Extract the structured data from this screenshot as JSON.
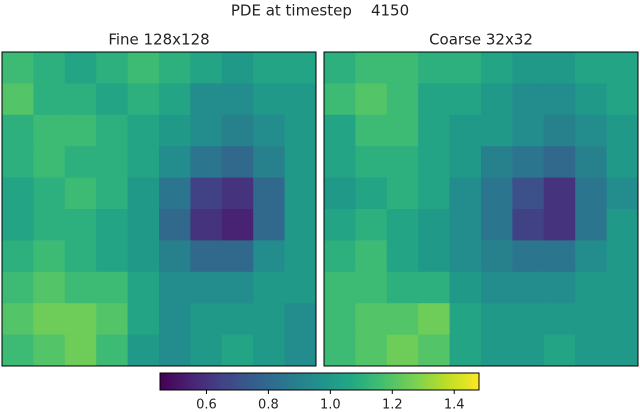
{
  "title": "PDE at timestep    4150",
  "chart_data": [
    {
      "type": "heatmap",
      "title": "Fine 128x128",
      "values": [
        [
          1.15,
          1.1,
          1.05,
          1.1,
          1.15,
          1.1,
          1.05,
          1.0,
          1.05,
          1.05
        ],
        [
          1.2,
          1.1,
          1.1,
          1.05,
          1.1,
          1.05,
          0.95,
          0.95,
          1.0,
          1.0
        ],
        [
          1.1,
          1.15,
          1.15,
          1.1,
          1.05,
          1.0,
          0.95,
          0.9,
          0.95,
          1.0
        ],
        [
          1.1,
          1.15,
          1.1,
          1.1,
          1.05,
          0.95,
          0.85,
          0.8,
          0.9,
          1.0
        ],
        [
          1.05,
          1.1,
          1.15,
          1.1,
          1.0,
          0.85,
          0.65,
          0.6,
          0.8,
          1.0
        ],
        [
          1.05,
          1.1,
          1.1,
          1.05,
          1.0,
          0.8,
          0.6,
          0.55,
          0.8,
          1.0
        ],
        [
          1.1,
          1.15,
          1.1,
          1.05,
          1.0,
          0.9,
          0.8,
          0.8,
          0.95,
          1.0
        ],
        [
          1.15,
          1.2,
          1.15,
          1.15,
          1.05,
          0.95,
          0.95,
          0.95,
          1.0,
          1.0
        ],
        [
          1.2,
          1.25,
          1.25,
          1.2,
          1.05,
          0.95,
          1.0,
          1.0,
          1.0,
          0.95
        ],
        [
          1.15,
          1.2,
          1.25,
          1.15,
          1.0,
          0.95,
          1.0,
          1.05,
          1.0,
          0.95
        ]
      ]
    },
    {
      "type": "heatmap",
      "title": "Coarse 32x32",
      "values": [
        [
          1.1,
          1.15,
          1.15,
          1.1,
          1.1,
          1.05,
          1.0,
          1.0,
          1.05,
          1.05
        ],
        [
          1.15,
          1.2,
          1.15,
          1.05,
          1.05,
          1.0,
          0.95,
          0.95,
          1.0,
          1.05
        ],
        [
          1.05,
          1.15,
          1.15,
          1.05,
          1.0,
          1.0,
          0.95,
          0.9,
          0.95,
          1.0
        ],
        [
          1.05,
          1.1,
          1.1,
          1.05,
          1.0,
          0.9,
          0.85,
          0.8,
          0.9,
          1.0
        ],
        [
          1.0,
          1.05,
          1.1,
          1.05,
          0.95,
          0.85,
          0.7,
          0.6,
          0.85,
          0.95
        ],
        [
          1.05,
          1.1,
          1.05,
          1.0,
          0.95,
          0.85,
          0.65,
          0.6,
          0.85,
          1.0
        ],
        [
          1.1,
          1.15,
          1.05,
          1.0,
          0.95,
          0.9,
          0.85,
          0.85,
          0.95,
          1.0
        ],
        [
          1.15,
          1.15,
          1.1,
          1.1,
          1.0,
          0.95,
          0.95,
          0.95,
          1.0,
          1.0
        ],
        [
          1.15,
          1.2,
          1.2,
          1.25,
          1.05,
          1.0,
          1.0,
          1.0,
          1.0,
          1.0
        ],
        [
          1.15,
          1.2,
          1.25,
          1.2,
          1.05,
          1.0,
          1.0,
          1.05,
          1.0,
          1.0
        ]
      ]
    }
  ],
  "colorbar": {
    "lim": [
      0.45,
      1.48
    ],
    "ticks": [
      0.6,
      0.8,
      {
        "value": 1,
        "label": "1.0"
      },
      1.2,
      1.4
    ]
  }
}
